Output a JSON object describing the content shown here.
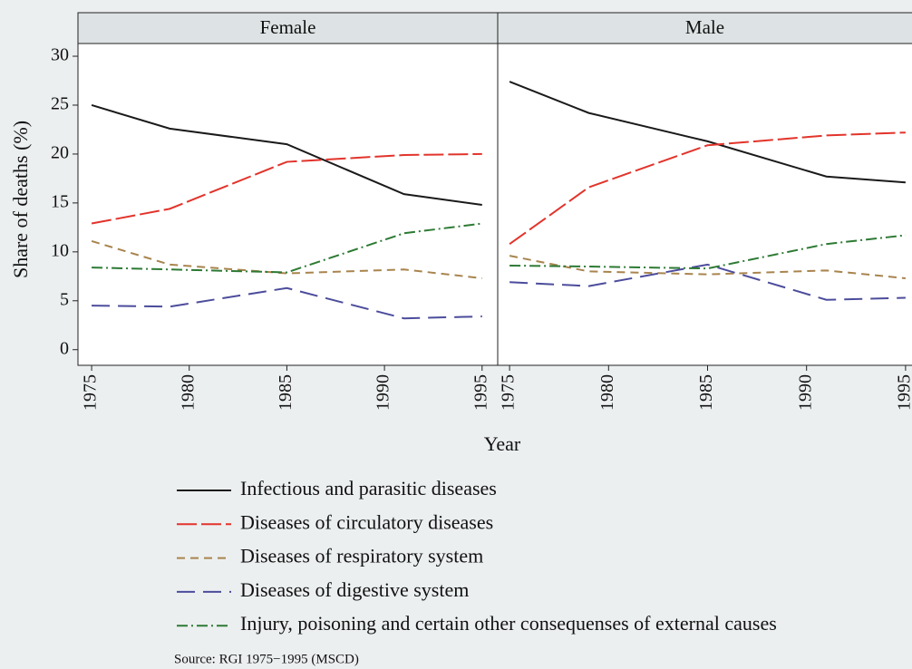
{
  "chart_data": [
    {
      "type": "line",
      "title": "Female",
      "x": [
        1975,
        1979,
        1985,
        1991,
        1995
      ],
      "xlim": [
        1974.3,
        1995.8
      ],
      "xticks": [
        1975,
        1980,
        1985,
        1990,
        1995
      ],
      "ylim": [
        -1.6,
        31.3
      ],
      "yticks": [
        0,
        5,
        10,
        15,
        20,
        25,
        30
      ],
      "series": [
        {
          "name": "Infectious and parasitic diseases",
          "color": "#1a1a1a",
          "values": [
            25,
            22.6,
            21,
            15.9,
            14.8
          ]
        },
        {
          "name": "Diseases of circulatory diseases",
          "color": "#e2342b",
          "values": [
            12.9,
            14.4,
            19.2,
            19.9,
            20
          ]
        },
        {
          "name": "Diseases of respiratory system",
          "color": "#a8844e",
          "values": [
            11.1,
            8.7,
            7.8,
            8.2,
            7.3
          ]
        },
        {
          "name": "Diseases of digestive system",
          "color": "#4c4c9c",
          "values": [
            4.5,
            4.4,
            6.3,
            3.2,
            3.4
          ]
        },
        {
          "name": "Injury, poisoning and certain other consequenses of external causes",
          "color": "#2d7a34",
          "values": [
            8.4,
            8.2,
            7.9,
            11.9,
            12.9
          ]
        }
      ]
    },
    {
      "type": "line",
      "title": "Male",
      "x": [
        1975,
        1979,
        1985,
        1991,
        1995
      ],
      "xlim": [
        1974.4,
        1995.6
      ],
      "xticks": [
        1975,
        1980,
        1985,
        1990,
        1995
      ],
      "ylim": [
        -1.6,
        31.3
      ],
      "series": [
        {
          "color": "#1a1a1a",
          "values": [
            27.4,
            24.2,
            21.3,
            17.7,
            17.1
          ]
        },
        {
          "color": "#e2342b",
          "values": [
            10.8,
            16.6,
            20.9,
            21.9,
            22.2
          ]
        },
        {
          "color": "#a8844e",
          "values": [
            9.6,
            8,
            7.7,
            8.1,
            7.3
          ]
        },
        {
          "color": "#4c4c9c",
          "values": [
            6.9,
            6.5,
            8.7,
            5.1,
            5.3
          ]
        },
        {
          "color": "#2d7a34",
          "values": [
            8.6,
            8.5,
            8.3,
            10.8,
            11.7
          ]
        }
      ]
    }
  ],
  "xlabel": "Year",
  "ylabel": "Share of deaths (%)",
  "source": "Source: RGI 1975−1995 (MSCD)"
}
